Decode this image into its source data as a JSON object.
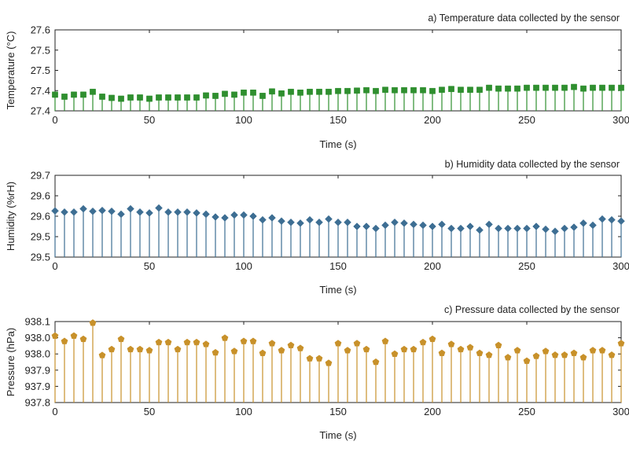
{
  "chart_data": [
    {
      "type": "stem",
      "title": "a) Temperature data collected by the sensor",
      "xlabel": "Time (s)",
      "ylabel": "Temperature (°C)",
      "xlim": [
        0,
        300
      ],
      "ylim": [
        27.4,
        27.6
      ],
      "xticks": [
        "0",
        "50",
        "100",
        "150",
        "200",
        "250",
        "300"
      ],
      "yticks": [
        "27.4",
        "27.4",
        "27.5",
        "27.5",
        "27.6"
      ],
      "color": "#2f8f2f",
      "marker": "square",
      "x": [
        0,
        5,
        10,
        15,
        20,
        25,
        30,
        35,
        40,
        45,
        50,
        55,
        60,
        65,
        70,
        75,
        80,
        85,
        90,
        95,
        100,
        105,
        110,
        115,
        120,
        125,
        130,
        135,
        140,
        145,
        150,
        155,
        160,
        165,
        170,
        175,
        180,
        185,
        190,
        195,
        200,
        205,
        210,
        215,
        220,
        225,
        230,
        235,
        240,
        245,
        250,
        255,
        260,
        265,
        270,
        275,
        280,
        285,
        290,
        295,
        300
      ],
      "values": [
        27.44,
        27.435,
        27.44,
        27.44,
        27.447,
        27.435,
        27.432,
        27.43,
        27.433,
        27.433,
        27.43,
        27.433,
        27.433,
        27.433,
        27.433,
        27.433,
        27.438,
        27.437,
        27.442,
        27.44,
        27.445,
        27.445,
        27.437,
        27.448,
        27.443,
        27.447,
        27.445,
        27.447,
        27.447,
        27.447,
        27.449,
        27.449,
        27.45,
        27.451,
        27.449,
        27.452,
        27.451,
        27.451,
        27.451,
        27.451,
        27.449,
        27.452,
        27.454,
        27.452,
        27.452,
        27.452,
        27.457,
        27.455,
        27.455,
        27.455,
        27.457,
        27.457,
        27.457,
        27.457,
        27.457,
        27.459,
        27.455,
        27.457,
        27.457,
        27.457,
        27.457
      ]
    },
    {
      "type": "stem",
      "title": "b) Humidity data collected by the sensor",
      "xlabel": "Time (s)",
      "ylabel": "Humidity (%rH)",
      "xlim": [
        0,
        300
      ],
      "ylim": [
        29.5,
        29.7
      ],
      "xticks": [
        "0",
        "50",
        "100",
        "150",
        "200",
        "250",
        "300"
      ],
      "yticks": [
        "29.5",
        "29.5",
        "29.6",
        "29.6",
        "29.7"
      ],
      "color": "#3d6e93",
      "marker": "diamond",
      "x": [
        0,
        5,
        10,
        15,
        20,
        25,
        30,
        35,
        40,
        45,
        50,
        55,
        60,
        65,
        70,
        75,
        80,
        85,
        90,
        95,
        100,
        105,
        110,
        115,
        120,
        125,
        130,
        135,
        140,
        145,
        150,
        155,
        160,
        165,
        170,
        175,
        180,
        185,
        190,
        195,
        200,
        205,
        210,
        215,
        220,
        225,
        230,
        235,
        240,
        245,
        250,
        255,
        260,
        265,
        270,
        275,
        280,
        285,
        290,
        295,
        300
      ],
      "values": [
        29.613,
        29.61,
        29.61,
        29.618,
        29.612,
        29.614,
        29.612,
        29.605,
        29.618,
        29.61,
        29.608,
        29.62,
        29.61,
        29.61,
        29.61,
        29.608,
        29.605,
        29.598,
        29.596,
        29.603,
        29.603,
        29.6,
        29.591,
        29.596,
        29.588,
        29.585,
        29.583,
        29.591,
        29.585,
        29.593,
        29.585,
        29.585,
        29.575,
        29.575,
        29.57,
        29.578,
        29.585,
        29.583,
        29.58,
        29.578,
        29.575,
        29.58,
        29.57,
        29.57,
        29.575,
        29.566,
        29.58,
        29.57,
        29.57,
        29.57,
        29.57,
        29.575,
        29.568,
        29.563,
        29.57,
        29.573,
        29.583,
        29.578,
        29.593,
        29.591,
        29.588
      ]
    },
    {
      "type": "stem",
      "title": "c) Pressure data collected by the sensor",
      "xlabel": "Time (s)",
      "ylabel": "Pressure (hPa)",
      "xlim": [
        0,
        300
      ],
      "ylim": [
        937.8,
        938.1
      ],
      "xticks": [
        "0",
        "50",
        "100",
        "150",
        "200",
        "250",
        "300"
      ],
      "yticks": [
        "937.8",
        "937.9",
        "937.9",
        "938.0",
        "938.0",
        "938.1"
      ],
      "color": "#c8912a",
      "marker": "pentagon",
      "x": [
        0,
        5,
        10,
        15,
        20,
        25,
        30,
        35,
        40,
        45,
        50,
        55,
        60,
        65,
        70,
        75,
        80,
        85,
        90,
        95,
        100,
        105,
        110,
        115,
        120,
        125,
        130,
        135,
        140,
        145,
        150,
        155,
        160,
        165,
        170,
        175,
        180,
        185,
        190,
        195,
        200,
        205,
        210,
        215,
        220,
        225,
        230,
        235,
        240,
        245,
        250,
        255,
        260,
        265,
        270,
        275,
        280,
        285,
        290,
        295,
        300
      ],
      "values": [
        938.047,
        938.027,
        938.047,
        938.035,
        938.095,
        937.975,
        937.997,
        938.035,
        937.997,
        937.997,
        937.993,
        938.023,
        938.023,
        937.997,
        938.023,
        938.023,
        938.016,
        937.985,
        938.039,
        937.99,
        938.027,
        938.027,
        937.983,
        938.019,
        937.993,
        938.012,
        938.001,
        937.963,
        937.963,
        937.946,
        938.019,
        937.993,
        938.019,
        937.997,
        937.95,
        938.027,
        937.98,
        937.997,
        937.997,
        938.023,
        938.035,
        937.983,
        938.016,
        937.997,
        938.004,
        937.983,
        937.976,
        938.012,
        937.967,
        937.993,
        937.954,
        937.972,
        937.99,
        937.976,
        937.976,
        937.983,
        937.967,
        937.993,
        937.993,
        937.976,
        938.019
      ]
    }
  ]
}
